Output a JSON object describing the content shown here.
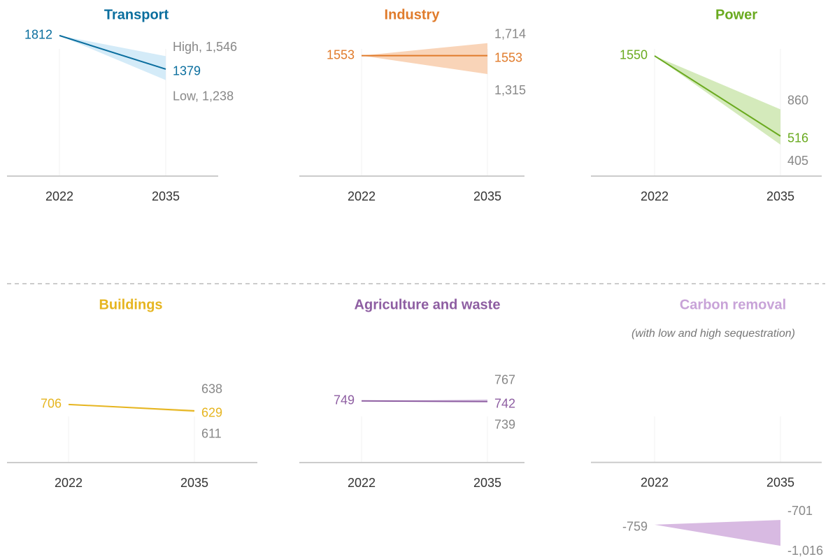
{
  "chart_data": [
    {
      "type": "line",
      "title": "Transport",
      "color": "#0a6e9e",
      "band_color": "#cfe9f7",
      "categories": [
        "2022",
        "2035"
      ],
      "ylim": [
        0,
        2000
      ],
      "values": [
        1812,
        1379
      ],
      "value_labels": [
        "1,812",
        "Mid, 1,379"
      ],
      "upper": [
        1812,
        1546
      ],
      "upper_labels": [
        null,
        "High, 1,546"
      ],
      "lower": [
        1812,
        1238
      ],
      "lower_labels": [
        null,
        "Low, 1,238"
      ]
    },
    {
      "type": "line",
      "title": "Industry",
      "color": "#e07b2b",
      "band_color": "#f8cfb0",
      "categories": [
        "2022",
        "2035"
      ],
      "ylim": [
        0,
        2000
      ],
      "values": [
        1553,
        1553
      ],
      "value_labels": [
        "1,553",
        "1,553"
      ],
      "upper": [
        1553,
        1714
      ],
      "upper_labels": [
        null,
        "1,714"
      ],
      "lower": [
        1553,
        1315
      ],
      "lower_labels": [
        null,
        "1,315"
      ]
    },
    {
      "type": "line",
      "title": "Power",
      "color": "#6aaa1f",
      "band_color": "#cfe8b4",
      "categories": [
        "2022",
        "2035"
      ],
      "ylim": [
        0,
        2000
      ],
      "values": [
        1550,
        516
      ],
      "value_labels": [
        "1,550",
        null
      ],
      "upper": [
        1550,
        860
      ],
      "lower": [
        1550,
        405
      ]
    },
    {
      "type": "line",
      "title": "Buildings",
      "color": "#e6b520",
      "band_color": "#f8e9b5",
      "categories": [
        "2022",
        "2035"
      ],
      "ylim": [
        0,
        900
      ],
      "values": [
        706,
        629
      ],
      "upper": [
        706,
        638
      ],
      "lower": [
        706,
        611
      ]
    },
    {
      "type": "line",
      "title": "Agriculture and waste",
      "color": "#8e5ea2",
      "band_color": "#dcc9e5",
      "categories": [
        "2022",
        "2035"
      ],
      "ylim": [
        0,
        900
      ],
      "values": [
        749,
        742
      ],
      "upper": [
        749,
        767
      ],
      "lower": [
        749,
        739
      ]
    },
    {
      "type": "band",
      "title": "Carbon removal",
      "subtitle": "(with low and high sequestration)",
      "color": "#c8a3d8",
      "band_color": "#d4b3df",
      "categories": [
        "2022",
        "2035"
      ],
      "ylim": [
        -1100,
        900
      ],
      "upper": [
        -759,
        -701
      ],
      "upper_labels": [
        null,
        "-701"
      ],
      "lower": [
        -759,
        -1016
      ],
      "lower_labels": [
        null,
        "-1,016"
      ]
    }
  ]
}
